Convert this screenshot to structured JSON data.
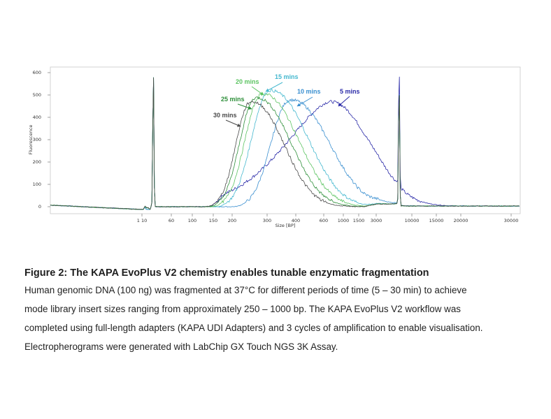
{
  "chart_data": {
    "type": "line",
    "title": "",
    "xlabel": "Size [BP]",
    "ylabel": "Fluorescence",
    "ylim": [
      0,
      640
    ],
    "yticks": [
      0,
      100,
      200,
      300,
      400,
      500,
      600
    ],
    "xtick_labels": [
      "1 10",
      "60",
      "100",
      "150",
      "200",
      "300",
      "400",
      "600",
      "1000",
      "1500",
      "3000",
      "10000",
      "15000",
      "20000",
      "30000"
    ],
    "x_scale": "log",
    "grid": false,
    "markers": [
      {
        "size_bp": 20,
        "peak": 640
      },
      {
        "size_bp": 6500,
        "peak": 592
      }
    ],
    "series": [
      {
        "name": "5 mins",
        "color": "#2a2aa8",
        "mode_bp": 700,
        "peak": 470
      },
      {
        "name": "10 mins",
        "color": "#3a8fd0",
        "mode_bp": 380,
        "peak": 478
      },
      {
        "name": "15 mins",
        "color": "#45b8cf",
        "mode_bp": 310,
        "peak": 520
      },
      {
        "name": "20 mins",
        "color": "#5cc462",
        "mode_bp": 285,
        "peak": 505
      },
      {
        "name": "25 mins",
        "color": "#2e8f3a",
        "mode_bp": 265,
        "peak": 488
      },
      {
        "name": "30 mins",
        "color": "#4a4a4a",
        "mode_bp": 250,
        "peak": 470
      }
    ]
  },
  "caption": {
    "title": "Figure 2: The KAPA EvoPlus V2 chemistry enables tunable enzymatic fragmentation",
    "body_line_1": "Human genomic DNA (100 ng) was fragmented at 37°C for different periods of time (5 – 30 min) to achieve",
    "body_line_2": "mode library insert sizes ranging from approximately 250 – 1000 bp. The KAPA EvoPlus V2 workflow was",
    "body_line_3": "completed using full-length adapters (KAPA UDI Adapters) and 3 cycles of amplification to enable visualisation.",
    "body_line_4": "Electropherograms were generated with LabChip GX Touch NGS 3K Assay."
  }
}
